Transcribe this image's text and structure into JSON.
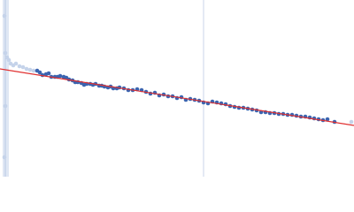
{
  "chart_data": {
    "type": "scatter",
    "xlim": [
      0,
      100
    ],
    "ylim": [
      0,
      100
    ],
    "vline": {
      "x": 57.5,
      "color": "#c8d4e8"
    },
    "series": [
      {
        "mode": "markers",
        "color": "#c5d3ea",
        "x": [
          1.25,
          1.5,
          2,
          2.5,
          3,
          3.75,
          4.5,
          5.5,
          6.5,
          7.5,
          8.5,
          9.5,
          1.5,
          1.25,
          99.25
        ],
        "values": [
          91,
          70,
          67.5,
          66,
          64,
          63,
          64,
          62.5,
          62,
          61,
          60.5,
          60,
          40,
          11,
          31
        ]
      },
      {
        "mode": "markers",
        "color": "#3b64b0",
        "x": [
          10.5,
          11.25,
          12,
          13,
          13.75,
          14.5,
          15.5,
          16.25,
          17,
          18,
          18.75,
          19.5,
          20.5,
          21.25,
          22,
          23,
          23.75,
          24.5,
          25.5,
          26.25,
          27,
          28,
          28.75,
          29.5,
          30.5,
          31.25,
          32,
          33,
          33.75,
          35,
          36.25,
          37.5,
          38.75,
          40,
          41.25,
          42.5,
          43.75,
          45,
          46.25,
          47.5,
          48.75,
          50,
          51.25,
          52.5,
          53.75,
          55,
          56.25,
          57.5,
          58.75,
          60,
          61.25,
          62.5,
          63.75,
          65,
          66.25,
          67.5,
          68.75,
          70,
          71.25,
          72.5,
          73.75,
          75,
          76.25,
          77.5,
          78.75,
          80,
          81.25,
          82.5,
          83.75,
          85,
          86.25,
          87.5,
          88.75,
          90,
          91.25,
          92.5,
          94.5
        ],
        "values": [
          60,
          59,
          57.5,
          58,
          58.5,
          56.5,
          56.5,
          56.5,
          57,
          56.5,
          56,
          55,
          54.5,
          53.5,
          53.5,
          53,
          52,
          52.5,
          52.5,
          52,
          52.5,
          51.5,
          51.5,
          51,
          50.5,
          51,
          50,
          50,
          50.5,
          50,
          49,
          49,
          49.5,
          49,
          48,
          47,
          47.5,
          46,
          46.5,
          45.5,
          45.5,
          44.5,
          45,
          43.5,
          44,
          43.5,
          43,
          42,
          41.5,
          42.5,
          42,
          41.5,
          41,
          40,
          39.5,
          39,
          39,
          38.5,
          38,
          37.5,
          36.5,
          36.5,
          36,
          36,
          35.5,
          35.5,
          35,
          35,
          34.5,
          34,
          34,
          33.5,
          33,
          32.5,
          32,
          32.5,
          31
        ]
      },
      {
        "mode": "line",
        "color": "#e03030",
        "x": [
          0,
          100
        ],
        "values": [
          61,
          29
        ]
      }
    ]
  }
}
